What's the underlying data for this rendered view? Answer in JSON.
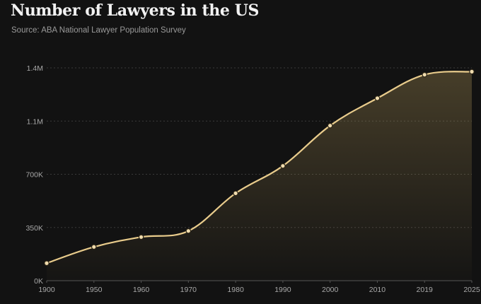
{
  "chart_data": {
    "type": "area",
    "title": "Number of Lawyers in the US",
    "subtitle": "Source: ABA National Lawyer Population Survey",
    "xlabel": "",
    "ylabel": "",
    "categories": [
      "1900",
      "1950",
      "1960",
      "1970",
      "1980",
      "1990",
      "2000",
      "2010",
      "2019",
      "2025"
    ],
    "values": [
      115000,
      222000,
      287000,
      327000,
      575000,
      755000,
      1020000,
      1200000,
      1355000,
      1375000
    ],
    "ylim": [
      0,
      1400000
    ],
    "yticks": [
      0,
      350000,
      700000,
      1050000,
      1400000
    ],
    "ytick_labels": [
      "0K",
      "350K",
      "700K",
      "1.1M",
      "1.4M"
    ],
    "grid": true,
    "colors": {
      "line": "#e9cc8c",
      "fill": "#b59a5a",
      "marker": "#f0dcae",
      "marker_stroke": "#2b2416",
      "grid": "#3a3a3a",
      "axis": "#555555",
      "background": "#121212"
    }
  }
}
